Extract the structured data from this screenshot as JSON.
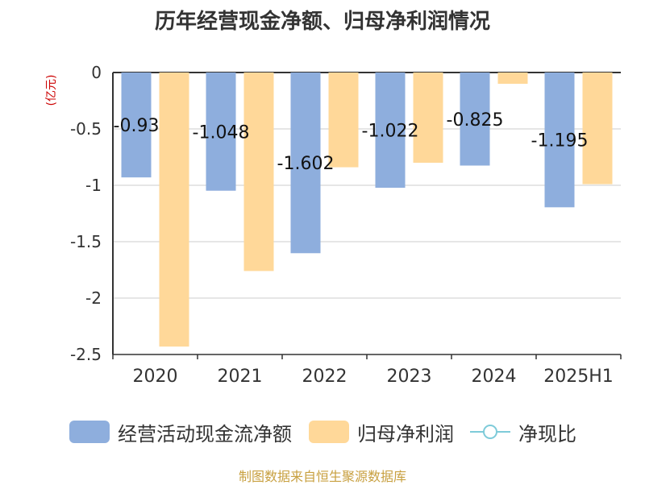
{
  "title": "历年经营现金净额、归母净利润情况",
  "unit_label": "(亿元)",
  "source": "制图数据来自恒生聚源数据库",
  "colors": {
    "cashflow": "#8eaedd",
    "profit": "#ffd899",
    "ratio": "#7ecbd9",
    "grid": "#cccccc",
    "axis": "#333333",
    "unit": "#cc0000",
    "source": "#c8a040"
  },
  "legend": {
    "cashflow_label": "经营活动现金流净额",
    "profit_label": "归母净利润",
    "ratio_label": "净现比"
  },
  "chart_data": {
    "type": "bar",
    "categories": [
      "2020",
      "2021",
      "2022",
      "2023",
      "2024",
      "2025H1"
    ],
    "series": [
      {
        "name": "经营活动现金流净额",
        "values": [
          -0.93,
          -1.048,
          -1.602,
          -1.022,
          -0.825,
          -1.195
        ],
        "labels": [
          "-0.93",
          "-1.048",
          "-1.602",
          "-1.022",
          "-0.825",
          "-1.195"
        ]
      },
      {
        "name": "归母净利润",
        "values": [
          -2.43,
          -1.76,
          -0.84,
          -0.8,
          -0.1,
          -0.99
        ]
      }
    ],
    "yticks": [
      "0",
      "-0.5",
      "-1",
      "-1.5",
      "-2",
      "-2.5"
    ],
    "ylim": [
      -2.5,
      0
    ],
    "grid": true,
    "legend_position": "bottom"
  }
}
